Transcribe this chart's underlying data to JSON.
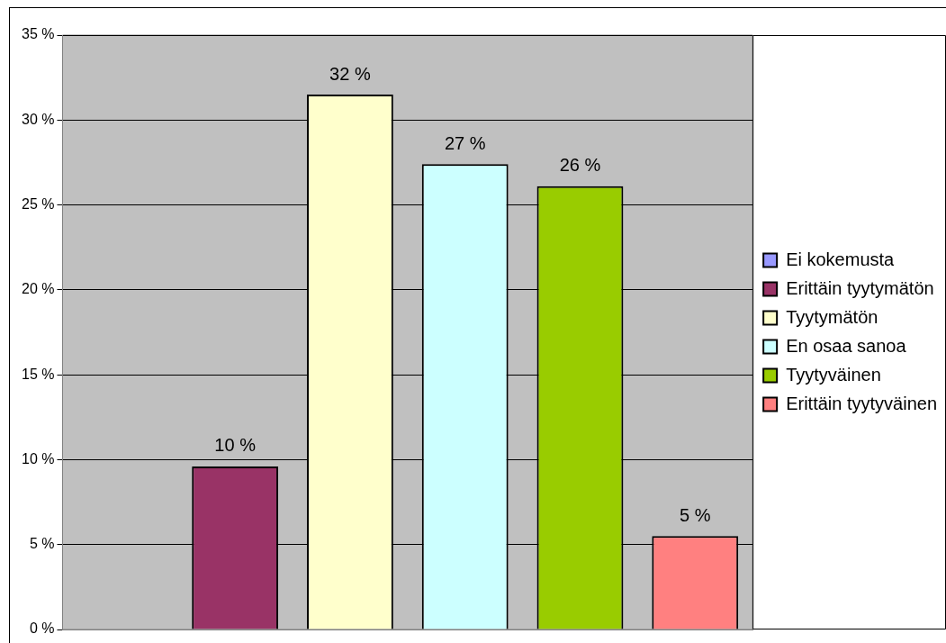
{
  "chart_data": {
    "type": "bar",
    "categories": [
      null
    ],
    "series": [
      {
        "name": "Ei kokemusta",
        "color": "#9999ff",
        "values": [
          0
        ],
        "value_labels": [
          null
        ]
      },
      {
        "name": "Erittäin tyytymätön",
        "color": "#993366",
        "values": [
          9.6
        ],
        "value_labels": [
          "10 %"
        ]
      },
      {
        "name": "Tyytymätön",
        "color": "#ffffcc",
        "values": [
          31.5
        ],
        "value_labels": [
          "32 %"
        ]
      },
      {
        "name": "En osaa sanoa",
        "color": "#ccffff",
        "values": [
          27.4
        ],
        "value_labels": [
          "27 %"
        ]
      },
      {
        "name": "Tyytyväinen",
        "color": "#99cc00",
        "values": [
          26.1
        ],
        "value_labels": [
          "26 %"
        ]
      },
      {
        "name": "Erittäin tyytyväinen",
        "color": "#ff8080",
        "values": [
          5.5
        ],
        "value_labels": [
          "5 %"
        ]
      }
    ],
    "ylim": [
      0,
      35
    ],
    "yticks": [
      {
        "value": 0,
        "label": "0 %"
      },
      {
        "value": 5,
        "label": "5 %"
      },
      {
        "value": 10,
        "label": "10 %"
      },
      {
        "value": 15,
        "label": "15 %"
      },
      {
        "value": 20,
        "label": "20 %"
      },
      {
        "value": 25,
        "label": "25 %"
      },
      {
        "value": 30,
        "label": "30 %"
      },
      {
        "value": 35,
        "label": "35 %"
      }
    ],
    "grid": "y",
    "legend": "right"
  }
}
